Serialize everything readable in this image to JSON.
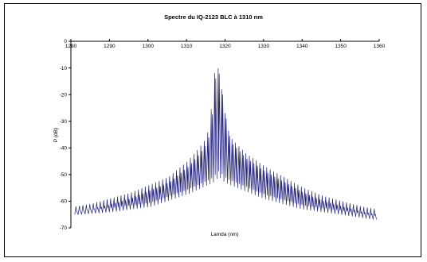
{
  "chart_data": {
    "type": "line",
    "title": "Spectre du IQ-2123 BLC à 1310 nm",
    "xlabel": "Lamda (nm)",
    "ylabel": "P (dB)",
    "xlim": [
      1280,
      1360
    ],
    "ylim": [
      -70,
      0
    ],
    "x_ticks": [
      1280,
      1290,
      1300,
      1310,
      1320,
      1330,
      1340,
      1350,
      1360
    ],
    "y_ticks": [
      0,
      -10,
      -20,
      -30,
      -40,
      -50,
      -60,
      -70
    ],
    "x_axis_position": "top",
    "grid": false,
    "legend": "none",
    "series": [
      {
        "color": "#1f1f7a",
        "mode_spacing_nm": 0.9,
        "peaks": {
          "x": [
            1281,
            1285,
            1290,
            1295,
            1300,
            1305,
            1310,
            1313,
            1315,
            1316,
            1317,
            1318,
            1319,
            1320,
            1321,
            1323,
            1325,
            1330,
            1335,
            1340,
            1345,
            1350,
            1355,
            1359
          ],
          "y": [
            -62,
            -61,
            -59,
            -57,
            -54,
            -51,
            -45,
            -40,
            -36,
            -27,
            -12,
            -10,
            -20,
            -30,
            -36,
            -39,
            -42,
            -47,
            -51,
            -55,
            -58,
            -60,
            -62,
            -63
          ]
        },
        "floor": {
          "x": [
            1281,
            1290,
            1300,
            1310,
            1316,
            1318,
            1320,
            1330,
            1340,
            1350,
            1359
          ],
          "y": [
            -65,
            -64,
            -62,
            -57,
            -53,
            -50,
            -53,
            -59,
            -63,
            -65,
            -67
          ]
        }
      }
    ]
  }
}
